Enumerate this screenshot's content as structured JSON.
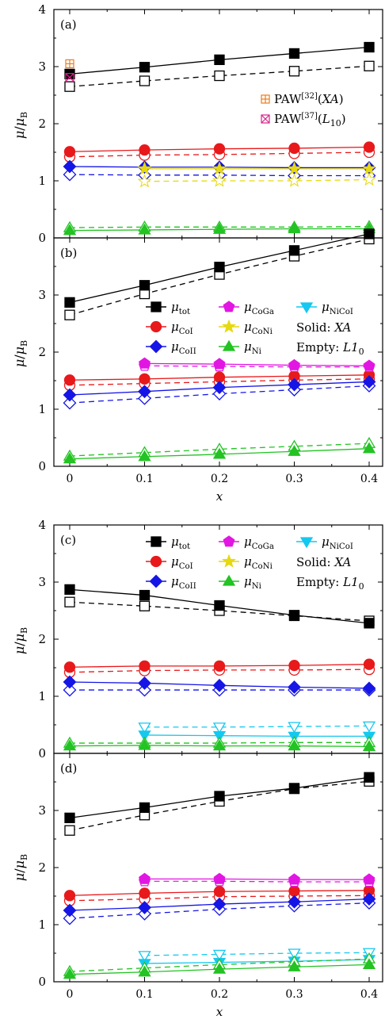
{
  "chart_data": [
    {
      "type": "line",
      "panel": "(a)",
      "x": [
        0,
        0.1,
        0.2,
        0.3,
        0.4
      ],
      "xlabel": "",
      "ylabel": "μ/μB",
      "ylim": [
        0,
        4
      ],
      "yticks": [
        "0",
        "1",
        "2",
        "3",
        "4"
      ],
      "grid": false,
      "series": [
        {
          "key": "tot",
          "marker": "square",
          "color": "#000000",
          "solid": [
            2.87,
            2.99,
            3.12,
            3.23,
            3.34
          ],
          "empty": [
            2.65,
            2.75,
            2.84,
            2.92,
            3.01
          ]
        },
        {
          "key": "CoI",
          "marker": "circle",
          "color": "#e8191b",
          "solid": [
            1.51,
            1.54,
            1.56,
            1.57,
            1.59
          ],
          "empty": [
            1.42,
            1.45,
            1.46,
            1.48,
            1.5
          ]
        },
        {
          "key": "CoII",
          "marker": "diamond",
          "color": "#1515e6",
          "solid": [
            1.25,
            1.24,
            1.24,
            1.23,
            1.23
          ],
          "empty": [
            1.11,
            1.1,
            1.1,
            1.09,
            1.09
          ]
        },
        {
          "key": "CoNi",
          "marker": "star",
          "color": "#e6d90e",
          "solid": [
            null,
            1.21,
            1.21,
            1.21,
            1.21
          ],
          "empty": [
            null,
            0.99,
            1.0,
            1.0,
            1.02
          ]
        },
        {
          "key": "Ni",
          "marker": "triangle-up",
          "color": "#22c322",
          "solid": [
            0.13,
            0.14,
            0.15,
            0.16,
            0.16
          ],
          "empty": [
            0.18,
            0.19,
            0.19,
            0.19,
            0.2
          ]
        }
      ],
      "references": [
        {
          "label": "PAW[32](XA)",
          "x": 0,
          "y": 3.05,
          "marker": "boxplus",
          "color": "#ee7d16"
        },
        {
          "label": "PAW[37](L10)",
          "x": 0,
          "y": 2.81,
          "marker": "boxtimes",
          "color": "#d9228a"
        }
      ],
      "reference_legend": {
        "entries": [
          {
            "base": "PAW",
            "sup": "[32]",
            "paren": "(XA)"
          },
          {
            "base": "PAW",
            "sup": "[37]",
            "paren": "(L10)"
          }
        ],
        "placement": "upper-right"
      }
    },
    {
      "type": "line",
      "panel": "(b)",
      "x": [
        0,
        0.1,
        0.2,
        0.3,
        0.4
      ],
      "xlabel": "x",
      "ylabel": "μ/μB",
      "ylim": [
        0,
        4
      ],
      "yticks": [
        "0",
        "1",
        "2",
        "3",
        ""
      ],
      "xticks": [
        "0",
        "0.1",
        "0.2",
        "0.3",
        "0.4"
      ],
      "grid": false,
      "series": [
        {
          "key": "tot",
          "marker": "square",
          "color": "#000000",
          "solid": [
            2.87,
            3.17,
            3.49,
            3.78,
            4.07
          ],
          "empty": [
            2.65,
            3.02,
            3.36,
            3.68,
            3.98
          ]
        },
        {
          "key": "CoI",
          "marker": "circle",
          "color": "#e8191b",
          "solid": [
            1.51,
            1.53,
            1.56,
            1.58,
            1.6
          ],
          "empty": [
            1.42,
            1.45,
            1.48,
            1.51,
            1.53
          ]
        },
        {
          "key": "CoII",
          "marker": "diamond",
          "color": "#1515e6",
          "solid": [
            1.25,
            1.31,
            1.38,
            1.43,
            1.48
          ],
          "empty": [
            1.11,
            1.19,
            1.27,
            1.34,
            1.41
          ]
        },
        {
          "key": "CoGa",
          "marker": "pentagon",
          "color": "#e216e2",
          "solid": [
            null,
            1.8,
            1.79,
            1.77,
            1.76
          ],
          "empty": [
            null,
            1.76,
            1.75,
            1.74,
            1.74
          ]
        },
        {
          "key": "Ni",
          "marker": "triangle-up",
          "color": "#22c322",
          "solid": [
            0.13,
            0.17,
            0.21,
            0.26,
            0.31
          ],
          "empty": [
            0.18,
            0.24,
            0.3,
            0.35,
            0.4
          ]
        }
      ]
    },
    {
      "type": "line",
      "panel": "(c)",
      "x": [
        0,
        0.1,
        0.2,
        0.3,
        0.4
      ],
      "xlabel": "",
      "ylabel": "μ/μB",
      "ylim": [
        0,
        4
      ],
      "yticks": [
        "0",
        "1",
        "2",
        "3",
        "4"
      ],
      "grid": false,
      "series": [
        {
          "key": "tot",
          "marker": "square",
          "color": "#000000",
          "solid": [
            2.87,
            2.77,
            2.59,
            2.42,
            2.28
          ],
          "empty": [
            2.65,
            2.58,
            2.5,
            2.41,
            2.32
          ]
        },
        {
          "key": "CoI",
          "marker": "circle",
          "color": "#e8191b",
          "solid": [
            1.51,
            1.53,
            1.53,
            1.54,
            1.56
          ],
          "empty": [
            1.42,
            1.45,
            1.46,
            1.46,
            1.47
          ]
        },
        {
          "key": "CoII",
          "marker": "diamond",
          "color": "#1515e6",
          "solid": [
            1.25,
            1.23,
            1.19,
            1.16,
            1.14
          ],
          "empty": [
            1.11,
            1.11,
            1.11,
            1.11,
            1.11
          ]
        },
        {
          "key": "NiCoI",
          "marker": "triangle-down",
          "color": "#14c8ef",
          "solid": [
            null,
            0.32,
            0.31,
            0.3,
            0.3
          ],
          "empty": [
            null,
            0.46,
            0.46,
            0.47,
            0.48
          ]
        },
        {
          "key": "Ni",
          "marker": "triangle-up",
          "color": "#22c322",
          "solid": [
            0.13,
            0.14,
            0.13,
            0.13,
            0.12
          ],
          "empty": [
            0.18,
            0.18,
            0.18,
            0.19,
            0.19
          ]
        }
      ]
    },
    {
      "type": "line",
      "panel": "(d)",
      "x": [
        0,
        0.1,
        0.2,
        0.3,
        0.4
      ],
      "xlabel": "x",
      "ylabel": "μ/μB",
      "ylim": [
        0,
        4
      ],
      "yticks": [
        "0",
        "1",
        "2",
        "3",
        ""
      ],
      "xticks": [
        "0",
        "0.1",
        "0.2",
        "0.3",
        "0.4"
      ],
      "grid": false,
      "series": [
        {
          "key": "tot",
          "marker": "square",
          "color": "#000000",
          "solid": [
            2.87,
            3.05,
            3.25,
            3.39,
            3.58
          ],
          "empty": [
            2.65,
            2.92,
            3.16,
            3.38,
            3.51
          ]
        },
        {
          "key": "CoI",
          "marker": "circle",
          "color": "#e8191b",
          "solid": [
            1.51,
            1.55,
            1.58,
            1.59,
            1.6
          ],
          "empty": [
            1.42,
            1.45,
            1.49,
            1.5,
            1.51
          ]
        },
        {
          "key": "CoII",
          "marker": "diamond",
          "color": "#1515e6",
          "solid": [
            1.25,
            1.3,
            1.36,
            1.4,
            1.45
          ],
          "empty": [
            1.11,
            1.19,
            1.27,
            1.33,
            1.38
          ]
        },
        {
          "key": "CoGa",
          "marker": "pentagon",
          "color": "#e216e2",
          "solid": [
            null,
            1.8,
            1.8,
            1.79,
            1.79
          ],
          "empty": [
            null,
            1.76,
            1.76,
            1.75,
            1.75
          ]
        },
        {
          "key": "NiCoI",
          "marker": "triangle-down",
          "color": "#14c8ef",
          "solid": [
            null,
            0.32,
            0.34,
            0.36,
            0.39
          ],
          "empty": [
            null,
            0.46,
            0.48,
            0.5,
            0.51
          ]
        },
        {
          "key": "Ni",
          "marker": "triangle-up",
          "color": "#22c322",
          "solid": [
            0.13,
            0.17,
            0.22,
            0.26,
            0.3
          ],
          "empty": [
            0.18,
            0.24,
            0.3,
            0.35,
            0.4
          ]
        }
      ]
    }
  ],
  "legend": {
    "entries": [
      {
        "key": "tot",
        "sym": "μ",
        "sub": "tot",
        "marker": "square",
        "color": "#000000"
      },
      {
        "key": "CoGa",
        "sym": "μ",
        "sub": "CoGa",
        "marker": "pentagon",
        "color": "#e216e2"
      },
      {
        "key": "NiCoI",
        "sym": "μ",
        "sub": "NiCoI",
        "marker": "triangle-down",
        "color": "#14c8ef"
      },
      {
        "key": "CoI",
        "sym": "μ",
        "sub": "CoI",
        "marker": "circle",
        "color": "#e8191b"
      },
      {
        "key": "CoNi",
        "sym": "μ",
        "sub": "CoNi",
        "marker": "star",
        "color": "#e6d90e"
      },
      {
        "key": "CoII",
        "sym": "μ",
        "sub": "CoII",
        "marker": "diamond",
        "color": "#1515e6"
      },
      {
        "key": "Ni",
        "sym": "μ",
        "sub": "Ni",
        "marker": "triangle-up",
        "color": "#22c322"
      }
    ],
    "notes": [
      {
        "label": "Solid: ",
        "value": "XA"
      },
      {
        "label": "Empty: ",
        "value": "L1",
        "sub": "0"
      }
    ],
    "shown_in_panels": [
      "(b)",
      "(c)"
    ]
  }
}
